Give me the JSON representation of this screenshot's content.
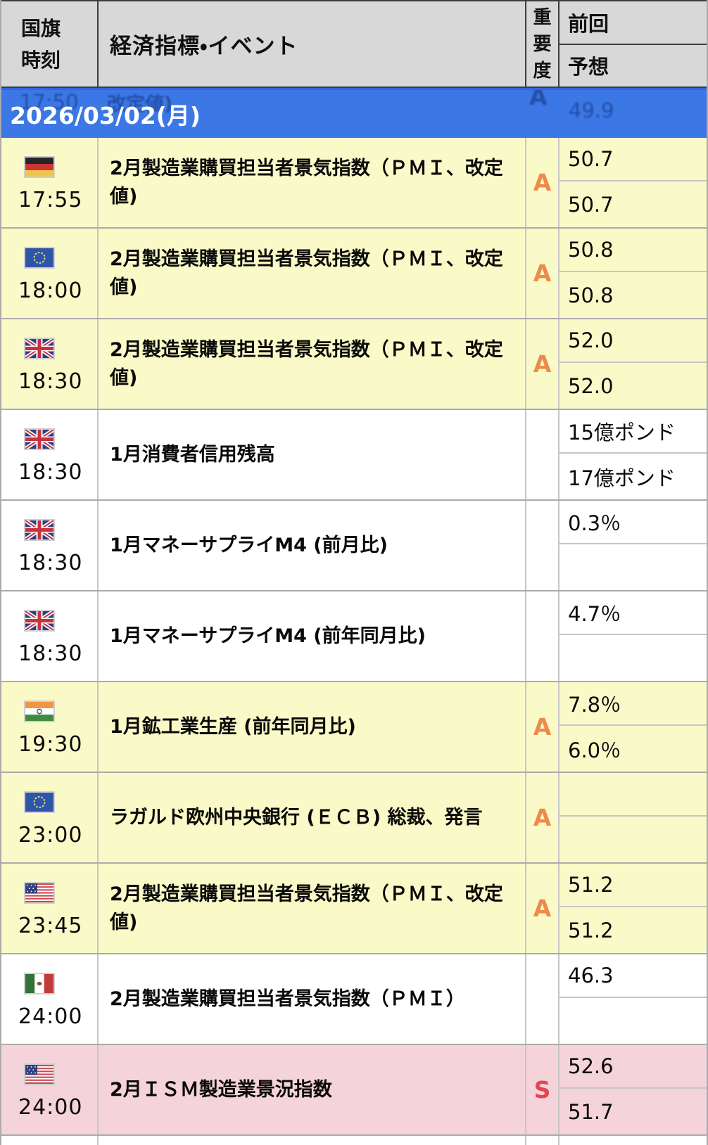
{
  "header": {
    "col_flag": "国旗",
    "col_time": "時刻",
    "col_event": "経済指標・イベント",
    "col_importance": [
      "重",
      "要",
      "度"
    ],
    "col_previous": "前回",
    "col_forecast": "予想"
  },
  "date_banner": {
    "label": "2026/03/02(月)"
  },
  "ghost_row": {
    "time": "17:50",
    "event_tail": "改定値)",
    "importance": "A",
    "previous": "49.9"
  },
  "colors": {
    "yellow_row": "#FAFAC8",
    "pink_row": "#F5D3DB",
    "banner_blue": "#3B78E5",
    "header_grey": "#D8D8D8",
    "imp_a": "#ED8A4C",
    "imp_s": "#E2474F"
  },
  "rows": [
    {
      "country": "germany",
      "time": "17:55",
      "event": "2月製造業購買担当者景気指数（ＰＭＩ、改定値)",
      "importance": "A",
      "previous": "50.7",
      "forecast": "50.7",
      "highlight": "yellow"
    },
    {
      "country": "eu",
      "time": "18:00",
      "event": "2月製造業購買担当者景気指数（ＰＭＩ、改定値)",
      "importance": "A",
      "previous": "50.8",
      "forecast": "50.8",
      "highlight": "yellow"
    },
    {
      "country": "uk",
      "time": "18:30",
      "event": "2月製造業購買担当者景気指数（ＰＭＩ、改定値)",
      "importance": "A",
      "previous": "52.0",
      "forecast": "52.0",
      "highlight": "yellow"
    },
    {
      "country": "uk",
      "time": "18:30",
      "event": "1月消費者信用残高",
      "importance": "",
      "previous": "15億ポンド",
      "forecast": "17億ポンド",
      "highlight": "white"
    },
    {
      "country": "uk",
      "time": "18:30",
      "event": "1月マネーサプライM4 (前月比)",
      "importance": "",
      "previous": "0.3％",
      "forecast": "",
      "highlight": "white"
    },
    {
      "country": "uk",
      "time": "18:30",
      "event": "1月マネーサプライM4 (前年同月比)",
      "importance": "",
      "previous": "4.7％",
      "forecast": "",
      "highlight": "white"
    },
    {
      "country": "india",
      "time": "19:30",
      "event": "1月鉱工業生産 (前年同月比)",
      "importance": "A",
      "previous": "7.8％",
      "forecast": "6.0％",
      "highlight": "yellow"
    },
    {
      "country": "eu",
      "time": "23:00",
      "event": "ラガルド欧州中央銀行 (ＥＣＢ) 総裁、発言",
      "importance": "A",
      "previous": "",
      "forecast": "",
      "highlight": "yellow"
    },
    {
      "country": "usa",
      "time": "23:45",
      "event": "2月製造業購買担当者景気指数（ＰＭＩ、改定値)",
      "importance": "A",
      "previous": "51.2",
      "forecast": "51.2",
      "highlight": "yellow"
    },
    {
      "country": "mexico",
      "time": "24:00",
      "event": "2月製造業購買担当者景気指数（ＰＭＩ）",
      "importance": "",
      "previous": "46.3",
      "forecast": "",
      "highlight": "white"
    },
    {
      "country": "usa",
      "time": "24:00",
      "event": "2月ＩＳＭ製造業景況指数",
      "importance": "S",
      "previous": "52.6",
      "forecast": "51.7",
      "highlight": "pink"
    }
  ]
}
